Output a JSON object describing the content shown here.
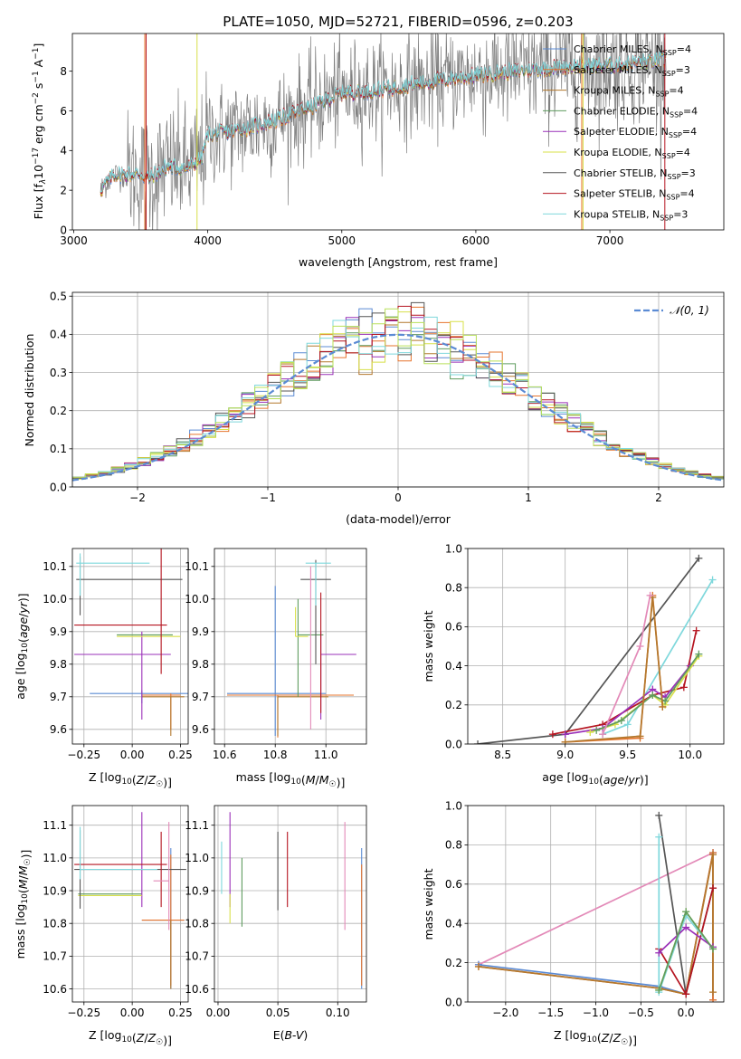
{
  "figure": {
    "title": "PLATE=1050, MJD=52721, FIBERID=0596, z=0.203"
  },
  "colors": {
    "miles_chabrier": "#5b8bd4",
    "miles_salpeter": "#e6752e",
    "miles_kroupa": "#b3782d",
    "elodie_chabrier": "#5f9c5f",
    "elodie_salpeter": "#9a30b8",
    "elodie_kroupa": "#d8e04a",
    "stelib_chabrier": "#555555",
    "stelib_salpeter": "#b51520",
    "stelib_kroupa": "#7fd8dc",
    "extra_pink": "#e38ab8",
    "extra_lime": "#b8e05a",
    "data_gray": "#808080"
  },
  "legend_entries": [
    {
      "pre": "Chabrier MILES, N",
      "sub": "SSP",
      "post": "=4"
    },
    {
      "pre": "Salpeter MILES, N",
      "sub": "SSP",
      "post": "=3"
    },
    {
      "pre": "Kroupa MILES, N",
      "sub": "SSP",
      "post": "=4"
    },
    {
      "pre": "Chabrier ELODIE, N",
      "sub": "SSP",
      "post": "=4"
    },
    {
      "pre": "Salpeter ELODIE, N",
      "sub": "SSP",
      "post": "=4"
    },
    {
      "pre": "Kroupa ELODIE, N",
      "sub": "SSP",
      "post": "=4"
    },
    {
      "pre": "Chabrier STELIB, N",
      "sub": "SSP",
      "post": "=3"
    },
    {
      "pre": "Salpeter STELIB, N",
      "sub": "SSP",
      "post": "=4"
    },
    {
      "pre": "Kroupa STELIB, N",
      "sub": "SSP",
      "post": "=3"
    }
  ],
  "chart_data": [
    {
      "id": "spectrum",
      "type": "line",
      "xlabel": "wavelength [Angstrom, rest frame]",
      "ylabel": {
        "pre": "Flux [f",
        "sub": "λ",
        "mid": "10",
        "sup1": "−17",
        "mid2": " erg cm",
        "sup2": "−2",
        "mid3": " s",
        "sup3": "−1",
        "mid4": " A",
        "sup4": "−1",
        "post": "]"
      },
      "xlim": [
        2990,
        7850
      ],
      "ylim": [
        0,
        9.9
      ],
      "xticks": [
        3000,
        4000,
        5000,
        6000,
        7000
      ],
      "yticks": [
        0,
        2,
        4,
        6,
        8
      ],
      "continuum": [
        [
          3200,
          2.0
        ],
        [
          3300,
          2.8
        ],
        [
          3500,
          2.8
        ],
        [
          3560,
          2.6
        ],
        [
          3700,
          3.2
        ],
        [
          3850,
          3.1
        ],
        [
          3950,
          3.6
        ],
        [
          4000,
          4.8
        ],
        [
          4200,
          5.0
        ],
        [
          4500,
          5.5
        ],
        [
          4800,
          6.3
        ],
        [
          5000,
          6.9
        ],
        [
          5200,
          7.0
        ],
        [
          5500,
          7.3
        ],
        [
          5800,
          7.6
        ],
        [
          6000,
          7.8
        ],
        [
          6300,
          8.0
        ],
        [
          6600,
          8.2
        ],
        [
          7000,
          8.3
        ],
        [
          7300,
          8.5
        ],
        [
          7420,
          8.6
        ]
      ]
    },
    {
      "id": "residuals",
      "type": "histogram",
      "xlabel": "(data-model)/error",
      "ylabel": "Normed distribution",
      "legend": "𝒩(0, 1)",
      "xlim": [
        -2.5,
        2.5
      ],
      "ylim": [
        0,
        0.51
      ],
      "xticks": [
        -2,
        -1,
        0,
        1,
        2
      ],
      "yticks": [
        0.0,
        0.1,
        0.2,
        0.3,
        0.4,
        0.5
      ],
      "bin_width": 0.1
    },
    {
      "id": "age_vs_z",
      "type": "errorbar",
      "xlabel": "Z [log10(Z/Z☉)]",
      "ylabel": "age  [log10(age/yr)]",
      "xlim": [
        -0.31,
        0.29
      ],
      "ylim": [
        9.555,
        10.155
      ],
      "xticks": [
        -0.25,
        0.0,
        0.25
      ],
      "yticks": [
        9.6,
        9.7,
        9.8,
        9.9,
        10.0,
        10.1
      ],
      "points": [
        {
          "c": "miles_chabrier",
          "x": 0.05,
          "y": 9.71,
          "xerr": [
            0.27,
            0.25
          ],
          "yerr": [
            0.03,
            0.01
          ]
        },
        {
          "c": "miles_salpeter",
          "x": 0.2,
          "y": 9.705,
          "xerr": [
            0.15,
            0.05
          ],
          "yerr": [
            0.105,
            0.005
          ]
        },
        {
          "c": "miles_kroupa",
          "x": 0.2,
          "y": 9.7,
          "xerr": [
            0.15,
            0.07
          ],
          "yerr": [
            0.12,
            0.0
          ]
        },
        {
          "c": "elodie_chabrier",
          "x": -0.08,
          "y": 9.89,
          "xerr": [
            0.0,
            0.29
          ],
          "yerr": [
            0.0,
            0.0
          ]
        },
        {
          "c": "elodie_salpeter",
          "x": 0.05,
          "y": 9.83,
          "xerr": [
            0.35,
            0.15
          ],
          "yerr": [
            0.2,
            0.07
          ]
        },
        {
          "c": "elodie_kroupa",
          "x": -0.08,
          "y": 9.885,
          "xerr": [
            0.0,
            0.33
          ],
          "yerr": [
            0.0,
            0.0
          ]
        },
        {
          "c": "stelib_chabrier",
          "x": -0.27,
          "y": 10.06,
          "xerr": [
            0.02,
            0.53
          ],
          "yerr": [
            0.11,
            0.07
          ]
        },
        {
          "c": "stelib_salpeter",
          "x": 0.15,
          "y": 9.92,
          "xerr": [
            0.45,
            0.03
          ],
          "yerr": [
            0.15,
            0.25
          ]
        },
        {
          "c": "stelib_kroupa",
          "x": -0.27,
          "y": 10.11,
          "xerr": [
            0.02,
            0.36
          ],
          "yerr": [
            0.1,
            0.03
          ]
        },
        {
          "c": "extra_pink",
          "x": 0.19,
          "y": 9.62,
          "xerr": [
            0.0,
            0.0
          ],
          "yerr": [
            0.0,
            0.0
          ]
        }
      ]
    },
    {
      "id": "age_vs_mass",
      "type": "errorbar",
      "xlabel": "mass [log10(M/M☉)]",
      "ylabel": "",
      "xlim": [
        10.56,
        11.16
      ],
      "ylim": [
        9.555,
        10.155
      ],
      "xticks": [
        10.6,
        10.8,
        11.0
      ],
      "yticks": [
        9.6,
        9.7,
        9.8,
        9.9,
        10.0,
        10.1
      ],
      "points": [
        {
          "c": "miles_chabrier",
          "x": 10.8,
          "y": 9.71,
          "xerr": [
            0.19,
            0.2
          ],
          "yerr": [
            0.13,
            0.33
          ]
        },
        {
          "c": "miles_salpeter",
          "x": 10.81,
          "y": 9.705,
          "xerr": [
            0.2,
            0.3
          ],
          "yerr": [
            0.13,
            0.0
          ]
        },
        {
          "c": "miles_kroupa",
          "x": 10.81,
          "y": 9.7,
          "xerr": [
            0.0,
            0.2
          ],
          "yerr": [
            0.12,
            0.0
          ]
        },
        {
          "c": "elodie_chabrier",
          "x": 10.89,
          "y": 9.89,
          "xerr": [
            0.0,
            0.1
          ],
          "yerr": [
            0.19,
            0.11
          ]
        },
        {
          "c": "elodie_salpeter",
          "x": 10.98,
          "y": 9.83,
          "xerr": [
            0.0,
            0.14
          ],
          "yerr": [
            0.2,
            0.07
          ]
        },
        {
          "c": "elodie_kroupa",
          "x": 10.88,
          "y": 9.885,
          "xerr": [
            0.0,
            0.05
          ],
          "yerr": [
            0.0,
            0.09
          ]
        },
        {
          "c": "stelib_chabrier",
          "x": 10.96,
          "y": 10.06,
          "xerr": [
            0.06,
            0.06
          ],
          "yerr": [
            0.26,
            0.06
          ]
        },
        {
          "c": "stelib_salpeter",
          "x": 10.98,
          "y": 9.92,
          "xerr": [
            0.0,
            0.0
          ],
          "yerr": [
            0.27,
            0.1
          ]
        },
        {
          "c": "stelib_kroupa",
          "x": 10.96,
          "y": 10.11,
          "xerr": [
            0.04,
            0.06
          ],
          "yerr": [
            0.13,
            0.0
          ]
        },
        {
          "c": "extra_pink",
          "x": 10.94,
          "y": 9.85,
          "xerr": [
            0.0,
            0.0
          ],
          "yerr": [
            0.25,
            0.25
          ]
        }
      ]
    },
    {
      "id": "weight_vs_age",
      "type": "line",
      "xlabel": "age  [log10(age/yr)]",
      "ylabel": "mass weight",
      "xlim": [
        8.22,
        10.27
      ],
      "ylim": [
        0.0,
        1.0
      ],
      "xticks": [
        8.5,
        9.0,
        9.5,
        10.0
      ],
      "yticks": [
        0.0,
        0.2,
        0.4,
        0.6,
        0.8,
        1.0
      ],
      "series": [
        {
          "c": "stelib_chabrier",
          "x": [
            8.3,
            9.0,
            10.07
          ],
          "y": [
            0.0,
            0.05,
            0.95
          ]
        },
        {
          "c": "stelib_kroupa",
          "x": [
            9.3,
            9.5,
            10.18
          ],
          "y": [
            0.05,
            0.1,
            0.84
          ]
        },
        {
          "c": "stelib_salpeter",
          "x": [
            8.9,
            9.3,
            9.7,
            9.95,
            10.05
          ],
          "y": [
            0.05,
            0.1,
            0.25,
            0.29,
            0.58
          ]
        },
        {
          "c": "elodie_salpeter",
          "x": [
            9.0,
            9.3,
            9.7,
            9.8,
            10.0
          ],
          "y": [
            0.05,
            0.08,
            0.28,
            0.24,
            0.4
          ]
        },
        {
          "c": "elodie_kroupa",
          "x": [
            9.2,
            9.4,
            9.7,
            9.8,
            10.07
          ],
          "y": [
            0.06,
            0.1,
            0.25,
            0.2,
            0.45
          ]
        },
        {
          "c": "elodie_chabrier",
          "x": [
            9.25,
            9.45,
            9.7,
            9.8,
            10.07
          ],
          "y": [
            0.07,
            0.12,
            0.25,
            0.22,
            0.46
          ]
        },
        {
          "c": "miles_salpeter",
          "x": [
            9.0,
            9.6,
            9.7,
            9.78
          ],
          "y": [
            0.01,
            0.03,
            0.76,
            0.19
          ]
        },
        {
          "c": "miles_kroupa",
          "x": [
            9.0,
            9.6,
            9.7,
            9.78
          ],
          "y": [
            0.01,
            0.04,
            0.75,
            0.19
          ]
        },
        {
          "c": "extra_pink",
          "x": [
            9.3,
            9.6,
            9.68
          ],
          "y": [
            0.05,
            0.5,
            0.76
          ]
        }
      ]
    },
    {
      "id": "mass_vs_z",
      "type": "errorbar",
      "xlabel": "Z [log10(Z/Z☉)]",
      "ylabel": "mass [log10(M/M☉)]",
      "xlim": [
        -0.31,
        0.29
      ],
      "ylim": [
        10.56,
        11.16
      ],
      "xticks": [
        -0.25,
        0.0,
        0.25
      ],
      "yticks": [
        10.6,
        10.7,
        10.8,
        10.9,
        11.0,
        11.1
      ],
      "points": [
        {
          "c": "miles_chabrier",
          "x": 0.2,
          "y": 10.81,
          "xerr": [
            0.15,
            0.07
          ],
          "yerr": [
            0.21,
            0.22
          ]
        },
        {
          "c": "miles_salpeter",
          "x": 0.2,
          "y": 10.81,
          "xerr": [
            0.15,
            0.07
          ],
          "yerr": [
            0.2,
            0.2
          ]
        },
        {
          "c": "miles_kroupa",
          "x": 0.2,
          "y": 10.81,
          "xerr": [
            0.0,
            0.0
          ],
          "yerr": [
            0.21,
            0.0
          ]
        },
        {
          "c": "elodie_chabrier",
          "x": -0.08,
          "y": 10.89,
          "xerr": [
            0.2,
            0.13
          ],
          "yerr": [
            0.0,
            0.0
          ]
        },
        {
          "c": "elodie_salpeter",
          "x": 0.05,
          "y": 10.98,
          "xerr": [
            0.0,
            0.0
          ],
          "yerr": [
            0.13,
            0.16
          ]
        },
        {
          "c": "elodie_kroupa",
          "x": -0.08,
          "y": 10.885,
          "xerr": [
            0.2,
            0.13
          ],
          "yerr": [
            0.0,
            0.0
          ]
        },
        {
          "c": "stelib_chabrier",
          "x": -0.27,
          "y": 10.965,
          "xerr": [
            0.03,
            0.55
          ],
          "yerr": [
            0.12,
            0.12
          ]
        },
        {
          "c": "stelib_salpeter",
          "x": 0.15,
          "y": 10.98,
          "xerr": [
            0.45,
            0.03
          ],
          "yerr": [
            0.13,
            0.1
          ]
        },
        {
          "c": "stelib_kroupa",
          "x": -0.27,
          "y": 10.965,
          "xerr": [
            0.0,
            0.4
          ],
          "yerr": [
            0.03,
            0.13
          ]
        },
        {
          "c": "extra_pink",
          "x": 0.19,
          "y": 10.93,
          "xerr": [
            0.08,
            0.0
          ],
          "yerr": [
            0.15,
            0.18
          ]
        }
      ]
    },
    {
      "id": "mass_vs_ebv",
      "type": "errorbar",
      "xlabel": "E(B-V)",
      "ylabel": "",
      "xlim": [
        -0.003,
        0.124
      ],
      "ylim": [
        10.56,
        11.16
      ],
      "xticks": [
        0.0,
        0.05,
        0.1
      ],
      "yticks": [
        10.6,
        10.7,
        10.8,
        10.9,
        11.0,
        11.1
      ],
      "points": [
        {
          "c": "miles_chabrier",
          "x": 0.12,
          "y": 10.81,
          "xerr": [
            0.0,
            0.0
          ],
          "yerr": [
            0.21,
            0.22
          ]
        },
        {
          "c": "miles_salpeter",
          "x": 0.12,
          "y": 10.81,
          "xerr": [
            0.0,
            0.0
          ],
          "yerr": [
            0.2,
            0.17
          ]
        },
        {
          "c": "elodie_chabrier",
          "x": 0.02,
          "y": 10.89,
          "xerr": [
            0.0,
            0.0
          ],
          "yerr": [
            0.1,
            0.11
          ]
        },
        {
          "c": "elodie_salpeter",
          "x": 0.01,
          "y": 10.98,
          "xerr": [
            0.0,
            0.0
          ],
          "yerr": [
            0.13,
            0.16
          ]
        },
        {
          "c": "elodie_kroupa",
          "x": 0.01,
          "y": 10.89,
          "xerr": [
            0.0,
            0.0
          ],
          "yerr": [
            0.09,
            0.0
          ]
        },
        {
          "c": "stelib_chabrier",
          "x": 0.05,
          "y": 10.96,
          "xerr": [
            0.0,
            0.0
          ],
          "yerr": [
            0.12,
            0.12
          ]
        },
        {
          "c": "stelib_salpeter",
          "x": 0.058,
          "y": 10.96,
          "xerr": [
            0.0,
            0.0
          ],
          "yerr": [
            0.11,
            0.12
          ]
        },
        {
          "c": "stelib_kroupa",
          "x": 0.003,
          "y": 10.96,
          "xerr": [
            0.0,
            0.0
          ],
          "yerr": [
            0.07,
            0.09
          ]
        },
        {
          "c": "extra_pink",
          "x": 0.106,
          "y": 10.95,
          "xerr": [
            0.0,
            0.0
          ],
          "yerr": [
            0.17,
            0.16
          ]
        }
      ]
    },
    {
      "id": "weight_vs_z",
      "type": "line",
      "xlabel": "Z [log10(Z/Z☉)]",
      "ylabel": "mass weight",
      "xlim": [
        -2.42,
        0.42
      ],
      "ylim": [
        0.0,
        1.0
      ],
      "xticks": [
        -2.0,
        -1.5,
        -1.0,
        -0.5,
        0.0
      ],
      "yticks": [
        0.0,
        0.2,
        0.4,
        0.6,
        0.8,
        1.0
      ],
      "series": [
        {
          "c": "extra_pink",
          "x": [
            -2.3,
            0.3
          ],
          "y": [
            0.19,
            0.76
          ]
        },
        {
          "c": "miles_chabrier",
          "x": [
            -2.3,
            -0.3,
            0.0,
            0.3,
            0.3
          ],
          "y": [
            0.19,
            0.08,
            0.04,
            0.76,
            0.01
          ]
        },
        {
          "c": "miles_salpeter",
          "x": [
            -2.3,
            -0.3,
            0.0,
            0.3,
            0.3
          ],
          "y": [
            0.18,
            0.07,
            0.04,
            0.76,
            0.01
          ]
        },
        {
          "c": "miles_kroupa",
          "x": [
            -2.3,
            -0.3,
            0.0,
            0.3,
            0.3
          ],
          "y": [
            0.18,
            0.07,
            0.04,
            0.75,
            0.05
          ]
        },
        {
          "c": "stelib_chabrier",
          "x": [
            -0.3,
            0.0,
            0.3
          ],
          "y": [
            0.95,
            0.04,
            0.58
          ]
        },
        {
          "c": "stelib_salpeter",
          "x": [
            -0.3,
            0.0,
            0.3
          ],
          "y": [
            0.27,
            0.04,
            0.58
          ]
        },
        {
          "c": "stelib_kroupa",
          "x": [
            -0.3,
            -0.3,
            0.0,
            0.3
          ],
          "y": [
            0.84,
            0.05,
            0.44,
            0.27
          ]
        },
        {
          "c": "elodie_salpeter",
          "x": [
            -0.3,
            0.0,
            0.3
          ],
          "y": [
            0.25,
            0.38,
            0.28
          ]
        },
        {
          "c": "elodie_kroupa",
          "x": [
            -0.3,
            0.0,
            0.3
          ],
          "y": [
            0.06,
            0.46,
            0.27
          ]
        },
        {
          "c": "elodie_chabrier",
          "x": [
            -0.3,
            0.0,
            0.3
          ],
          "y": [
            0.06,
            0.46,
            0.27
          ]
        }
      ]
    }
  ]
}
